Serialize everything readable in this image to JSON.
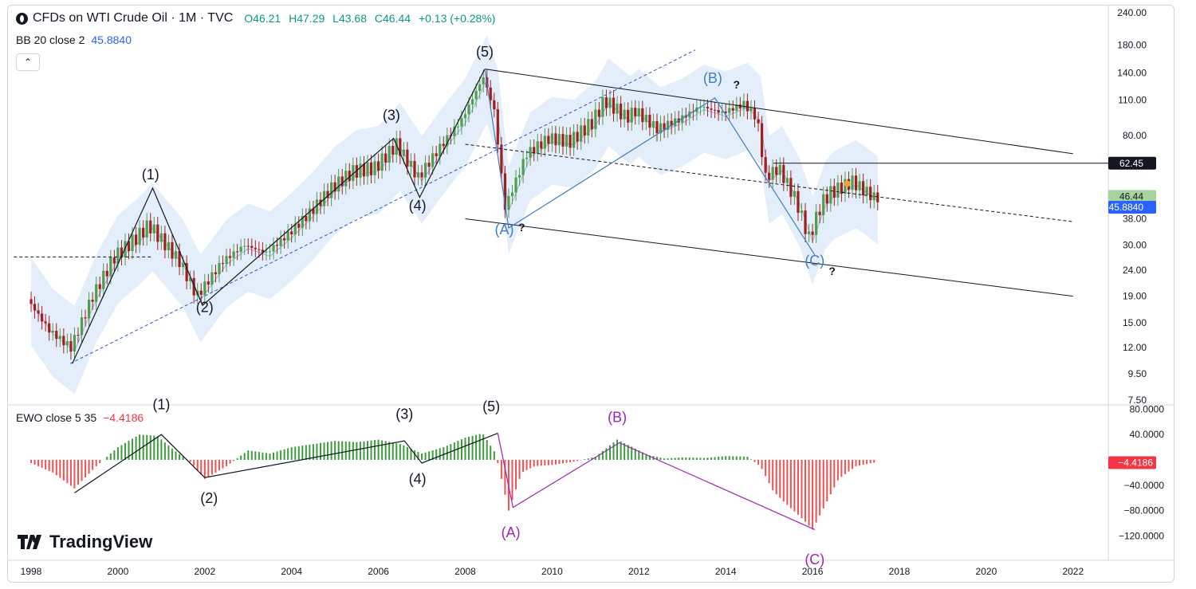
{
  "header": {
    "title": "CFDs on WTI Crude Oil · 1M · TVC",
    "open": "O46.21",
    "high": "H47.29",
    "low": "L43.68",
    "close": "C46.44",
    "change": "+0.13 (+0.28%)"
  },
  "bb": {
    "label": "BB 20 close 2",
    "value": "45.8840",
    "color": "#2962ff"
  },
  "ewo": {
    "label": "EWO close 5 35",
    "value": "−4.4186",
    "color": "#f23645"
  },
  "brand": "TradingView",
  "colors": {
    "up": "#4f9e4d",
    "down": "#a31f1f",
    "hist_up": "#3d9a3d",
    "hist_down": "#f05050",
    "band": "#dbe8f8",
    "wave_blue": "#3e7fc1",
    "wave_purple": "#9c27b0"
  },
  "price_axis": {
    "ticks": [
      "240.00",
      "180.00",
      "140.00",
      "110.00",
      "80.00",
      "62.45",
      "46.44",
      "45.8840",
      "38.00",
      "30.00",
      "24.00",
      "19.00",
      "15.00",
      "12.00",
      "9.50",
      "7.50"
    ],
    "tick_values": [
      240,
      180,
      140,
      110,
      80,
      62.45,
      46.44,
      45.884,
      38,
      30,
      24,
      19,
      15,
      12,
      9.5,
      7.5
    ],
    "labels": {
      "line_level": "62.45",
      "last_price": "46.44",
      "bb_value": "45.8840"
    }
  },
  "ewo_axis": {
    "ticks": [
      "80.0000",
      "40.0000",
      "0.0000",
      "−40.0000",
      "−80.0000",
      "−120.0000"
    ],
    "tick_values": [
      80,
      40,
      0,
      -40,
      -80,
      -120
    ],
    "current": "−4.4186"
  },
  "time_axis": {
    "ticks": [
      "1998",
      "2000",
      "2002",
      "2004",
      "2006",
      "2008",
      "2010",
      "2012",
      "2014",
      "2016",
      "2018",
      "2020",
      "2022"
    ]
  },
  "wave_labels": {
    "price": [
      {
        "text": "(1)",
        "t": 2000.75,
        "p": 54,
        "color": "#131722"
      },
      {
        "text": "(2)",
        "t": 2002.0,
        "p": 16.5,
        "color": "#131722"
      },
      {
        "text": "(3)",
        "t": 2006.3,
        "p": 92,
        "color": "#131722"
      },
      {
        "text": "(4)",
        "t": 2006.9,
        "p": 41,
        "color": "#131722"
      },
      {
        "text": "(5)",
        "t": 2008.45,
        "p": 162,
        "color": "#131722"
      },
      {
        "text": "(A)",
        "t": 2008.9,
        "p": 33,
        "color": "#3e7fc1"
      },
      {
        "text": "?",
        "t": 2009.3,
        "p": 34,
        "color": "#131722"
      },
      {
        "text": "(B)",
        "t": 2013.7,
        "p": 128,
        "color": "#3e7fc1"
      },
      {
        "text": "?",
        "t": 2014.25,
        "p": 122,
        "color": "#131722"
      },
      {
        "text": "(C)",
        "t": 2016.05,
        "p": 25,
        "color": "#3e7fc1"
      },
      {
        "text": "?",
        "t": 2016.45,
        "p": 23,
        "color": "#131722"
      }
    ],
    "ewo": [
      {
        "text": "(1)",
        "t": 2001.0,
        "v": 80,
        "color": "#131722"
      },
      {
        "text": "(2)",
        "t": 2002.1,
        "v": -68,
        "color": "#131722"
      },
      {
        "text": "(3)",
        "t": 2006.6,
        "v": 65,
        "color": "#131722"
      },
      {
        "text": "(4)",
        "t": 2006.9,
        "v": -38,
        "color": "#131722"
      },
      {
        "text": "(5)",
        "t": 2008.6,
        "v": 77,
        "color": "#131722"
      },
      {
        "text": "(A)",
        "t": 2009.05,
        "v": -122,
        "color": "#9c27b0"
      },
      {
        "text": "(B)",
        "t": 2011.5,
        "v": 60,
        "color": "#9c27b0"
      },
      {
        "text": "(C)",
        "t": 2016.05,
        "v": -165,
        "color": "#9c27b0"
      }
    ]
  },
  "chart_data": [
    {
      "type": "line",
      "title": "CFDs on WTI Crude Oil · 1M · TVC",
      "y_scale": "log",
      "ylim": [
        7.5,
        240
      ],
      "xlim": [
        1997.6,
        2023
      ],
      "series": [
        {
          "name": "CFDs on WTI Crude Oil",
          "x": [
            1998.0,
            1998.5,
            1999.0,
            1999.5,
            2000.0,
            2000.5,
            2000.8,
            2001.5,
            2001.9,
            2002.5,
            2003.0,
            2003.5,
            2004.0,
            2004.5,
            2005.0,
            2005.5,
            2006.0,
            2006.5,
            2007.0,
            2007.5,
            2008.0,
            2008.5,
            2008.75,
            2009.0,
            2009.5,
            2010.0,
            2010.5,
            2011.0,
            2011.3,
            2011.8,
            2012.0,
            2012.5,
            2013.0,
            2013.5,
            2014.0,
            2014.5,
            2014.8,
            2015.0,
            2015.3,
            2015.7,
            2016.0,
            2016.3,
            2016.5,
            2017.0,
            2017.5
          ],
          "values": [
            18.5,
            14,
            12,
            19,
            27,
            32,
            36,
            26,
            19,
            26,
            30,
            28,
            33,
            40,
            50,
            58,
            60,
            74,
            55,
            72,
            92,
            135,
            100,
            42,
            68,
            78,
            76,
            90,
            110,
            94,
            100,
            85,
            92,
            104,
            98,
            106,
            94,
            55,
            60,
            45,
            32,
            44,
            48,
            53,
            46
          ]
        },
        {
          "name": "BB 20 close 2",
          "values_last": 45.884
        }
      ],
      "trendlines": [
        {
          "from": [
            2008.45,
            145
          ],
          "to": [
            2022.0,
            68
          ]
        },
        {
          "from": [
            2008.0,
            38
          ],
          "to": [
            2022.0,
            19
          ]
        },
        {
          "from": [
            2008.0,
            74
          ],
          "to": [
            2022.0,
            37
          ],
          "style": "dashed"
        },
        {
          "from": [
            1998.9,
            10.4
          ],
          "to": [
            2013.3,
            172
          ],
          "style": "dashed"
        },
        {
          "from": [
            1997.6,
            27
          ],
          "to": [
            2000.8,
            27
          ],
          "style": "dashed"
        },
        {
          "from": [
            2015.1,
            62.45
          ],
          "to": [
            2023.0,
            62.45
          ]
        }
      ]
    },
    {
      "type": "bar",
      "title": "EWO close 5 35",
      "ylim": [
        -150,
        90
      ],
      "x": [
        1998.0,
        1998.5,
        1999.0,
        1999.5,
        2000.0,
        2000.5,
        2000.9,
        2001.3,
        2001.7,
        2002.0,
        2002.5,
        2003.0,
        2003.5,
        2004.0,
        2004.5,
        2005.0,
        2005.5,
        2006.0,
        2006.5,
        2007.0,
        2007.5,
        2008.0,
        2008.4,
        2008.7,
        2009.0,
        2009.3,
        2009.6,
        2010.0,
        2010.5,
        2011.0,
        2011.5,
        2011.8,
        2012.2,
        2012.6,
        2013.0,
        2013.5,
        2014.0,
        2014.5,
        2014.8,
        2015.1,
        2015.4,
        2015.8,
        2016.0,
        2016.3,
        2016.6,
        2017.0,
        2017.4
      ],
      "values": [
        -5,
        -20,
        -45,
        -10,
        20,
        40,
        38,
        15,
        -5,
        -30,
        -10,
        15,
        10,
        20,
        25,
        30,
        28,
        32,
        25,
        10,
        20,
        35,
        42,
        10,
        -80,
        -20,
        -10,
        -8,
        -3,
        5,
        32,
        22,
        8,
        2,
        4,
        3,
        6,
        5,
        -10,
        -50,
        -70,
        -95,
        -110,
        -70,
        -30,
        -10,
        -4.4186
      ]
    }
  ]
}
